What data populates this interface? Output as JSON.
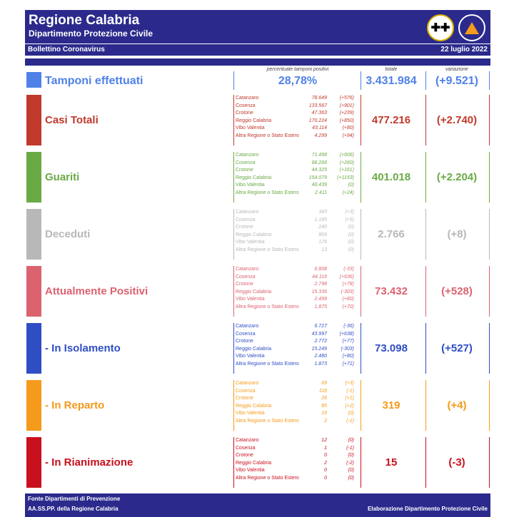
{
  "header": {
    "title": "Regione Calabria",
    "subtitle": "Dipartimento Protezione Civile",
    "bulletin": "Bollettino Coronavirus",
    "date": "22 luglio 2022",
    "logo2_text": "PROTEZIONE CIVILE"
  },
  "tamponi": {
    "label": "Tamponi effettuati",
    "perc_header": "percentuale tamponi positivi",
    "perc": "28,78%",
    "totale_header": "totale",
    "totale": "3.431.984",
    "variazione_header": "variazione",
    "variazione": "(+9.521)",
    "color": "#4f81e8"
  },
  "rows": [
    {
      "label": "Casi Totali",
      "color": "#c0392b",
      "total": "477.216",
      "change": "(+2.740)",
      "provinces": [
        {
          "name": "Catanzaro",
          "value": "78.649",
          "delta": "(+576)"
        },
        {
          "name": "Cosenza",
          "value": "133.567",
          "delta": "(+901)"
        },
        {
          "name": "Crotone",
          "value": "47.363",
          "delta": "(+239)"
        },
        {
          "name": "Reggio Calabria",
          "value": "170.224",
          "delta": "(+850)"
        },
        {
          "name": "Vibo Valentia",
          "value": "43.114",
          "delta": "(+80)"
        },
        {
          "name": "Altra Regione o Stato Estero",
          "value": "4.299",
          "delta": "(+94)"
        }
      ]
    },
    {
      "label": "Guariti",
      "color": "#6aaa45",
      "total": "401.018",
      "change": "(+2.204)",
      "provinces": [
        {
          "name": "Catanzaro",
          "value": "71.498",
          "delta": "(+606)"
        },
        {
          "name": "Cosenza",
          "value": "88.266",
          "delta": "(+260)"
        },
        {
          "name": "Crotone",
          "value": "44.325",
          "delta": "(+161)"
        },
        {
          "name": "Reggio Calabria",
          "value": "154.079",
          "delta": "(+1153)"
        },
        {
          "name": "Vibo Valentia",
          "value": "40.439",
          "delta": "(0)"
        },
        {
          "name": "Altra Regione o Stato Estero",
          "value": "2.411",
          "delta": "(+24)"
        }
      ]
    },
    {
      "label": "Deceduti",
      "color": "#b8b8b8",
      "total": "2.766",
      "change": "(+8)",
      "provinces": [
        {
          "name": "Catanzaro",
          "value": "343",
          "delta": "(+3)"
        },
        {
          "name": "Cosenza",
          "value": "1.185",
          "delta": "(+5)"
        },
        {
          "name": "Crotone",
          "value": "240",
          "delta": "(0)"
        },
        {
          "name": "Reggio Calabria",
          "value": "809",
          "delta": "(0)"
        },
        {
          "name": "Vibo Valentia",
          "value": "176",
          "delta": "(0)"
        },
        {
          "name": "Altra Regione o Stato Estero",
          "value": "13",
          "delta": "(0)"
        }
      ]
    },
    {
      "label": "Attualmente Positivi",
      "color": "#dc6270",
      "total": "73.432",
      "change": "(+528)",
      "provinces": [
        {
          "name": "Catanzaro",
          "value": "6.808",
          "delta": "(-33)"
        },
        {
          "name": "Cosenza",
          "value": "44.116",
          "delta": "(+636)"
        },
        {
          "name": "Crotone",
          "value": "2.798",
          "delta": "(+78)"
        },
        {
          "name": "Reggio Calabria",
          "value": "15.336",
          "delta": "(-303)"
        },
        {
          "name": "Vibo Valentia",
          "value": "2.499",
          "delta": "(+80)"
        },
        {
          "name": "Altra Regione o Stato Estero",
          "value": "1.875",
          "delta": "(+70)"
        }
      ]
    },
    {
      "label": "- In Isolamento",
      "color": "#2f4ec4",
      "total": "73.098",
      "change": "(+527)",
      "provinces": [
        {
          "name": "Catanzaro",
          "value": "6.727",
          "delta": "(-36)"
        },
        {
          "name": "Cosenza",
          "value": "43.997",
          "delta": "(+638)"
        },
        {
          "name": "Crotone",
          "value": "2.772",
          "delta": "(+77)"
        },
        {
          "name": "Reggio Calabria",
          "value": "15.249",
          "delta": "(-303)"
        },
        {
          "name": "Vibo Valentia",
          "value": "2.480",
          "delta": "(+80)"
        },
        {
          "name": "Altra Regione o Stato Estero",
          "value": "1.873",
          "delta": "(+71)"
        }
      ]
    },
    {
      "label": "- In Reparto",
      "color": "#f59a1a",
      "total": "319",
      "change": "(+4)",
      "provinces": [
        {
          "name": "Catanzaro",
          "value": "69",
          "delta": "(+3)"
        },
        {
          "name": "Cosenza",
          "value": "118",
          "delta": "(-1)"
        },
        {
          "name": "Crotone",
          "value": "26",
          "delta": "(+1)"
        },
        {
          "name": "Reggio Calabria",
          "value": "85",
          "delta": "(+2)"
        },
        {
          "name": "Vibo Valentia",
          "value": "19",
          "delta": "(0)"
        },
        {
          "name": "Altra Regione o Stato Estero",
          "value": "2",
          "delta": "(-1)"
        }
      ]
    },
    {
      "label": "- In Rianimazione",
      "color": "#c8101e",
      "total": "15",
      "change": "(-3)",
      "provinces": [
        {
          "name": "Catanzaro",
          "value": "12",
          "delta": "(0)"
        },
        {
          "name": "Cosenza",
          "value": "1",
          "delta": "(-1)"
        },
        {
          "name": "Crotone",
          "value": "0",
          "delta": "(0)"
        },
        {
          "name": "Reggio Calabria",
          "value": "2",
          "delta": "(-2)"
        },
        {
          "name": "Vibo Valentia",
          "value": "0",
          "delta": "(0)"
        },
        {
          "name": "Altra Regione o Stato Estero",
          "value": "0",
          "delta": "(0)"
        }
      ]
    }
  ],
  "footer": {
    "line1": "Fonte Dipartimenti di Prevenzione",
    "line2": "AA.SS.PP.  della Regione Calabria",
    "right": "Elaborazione Dipartimento Protezione Civile"
  }
}
